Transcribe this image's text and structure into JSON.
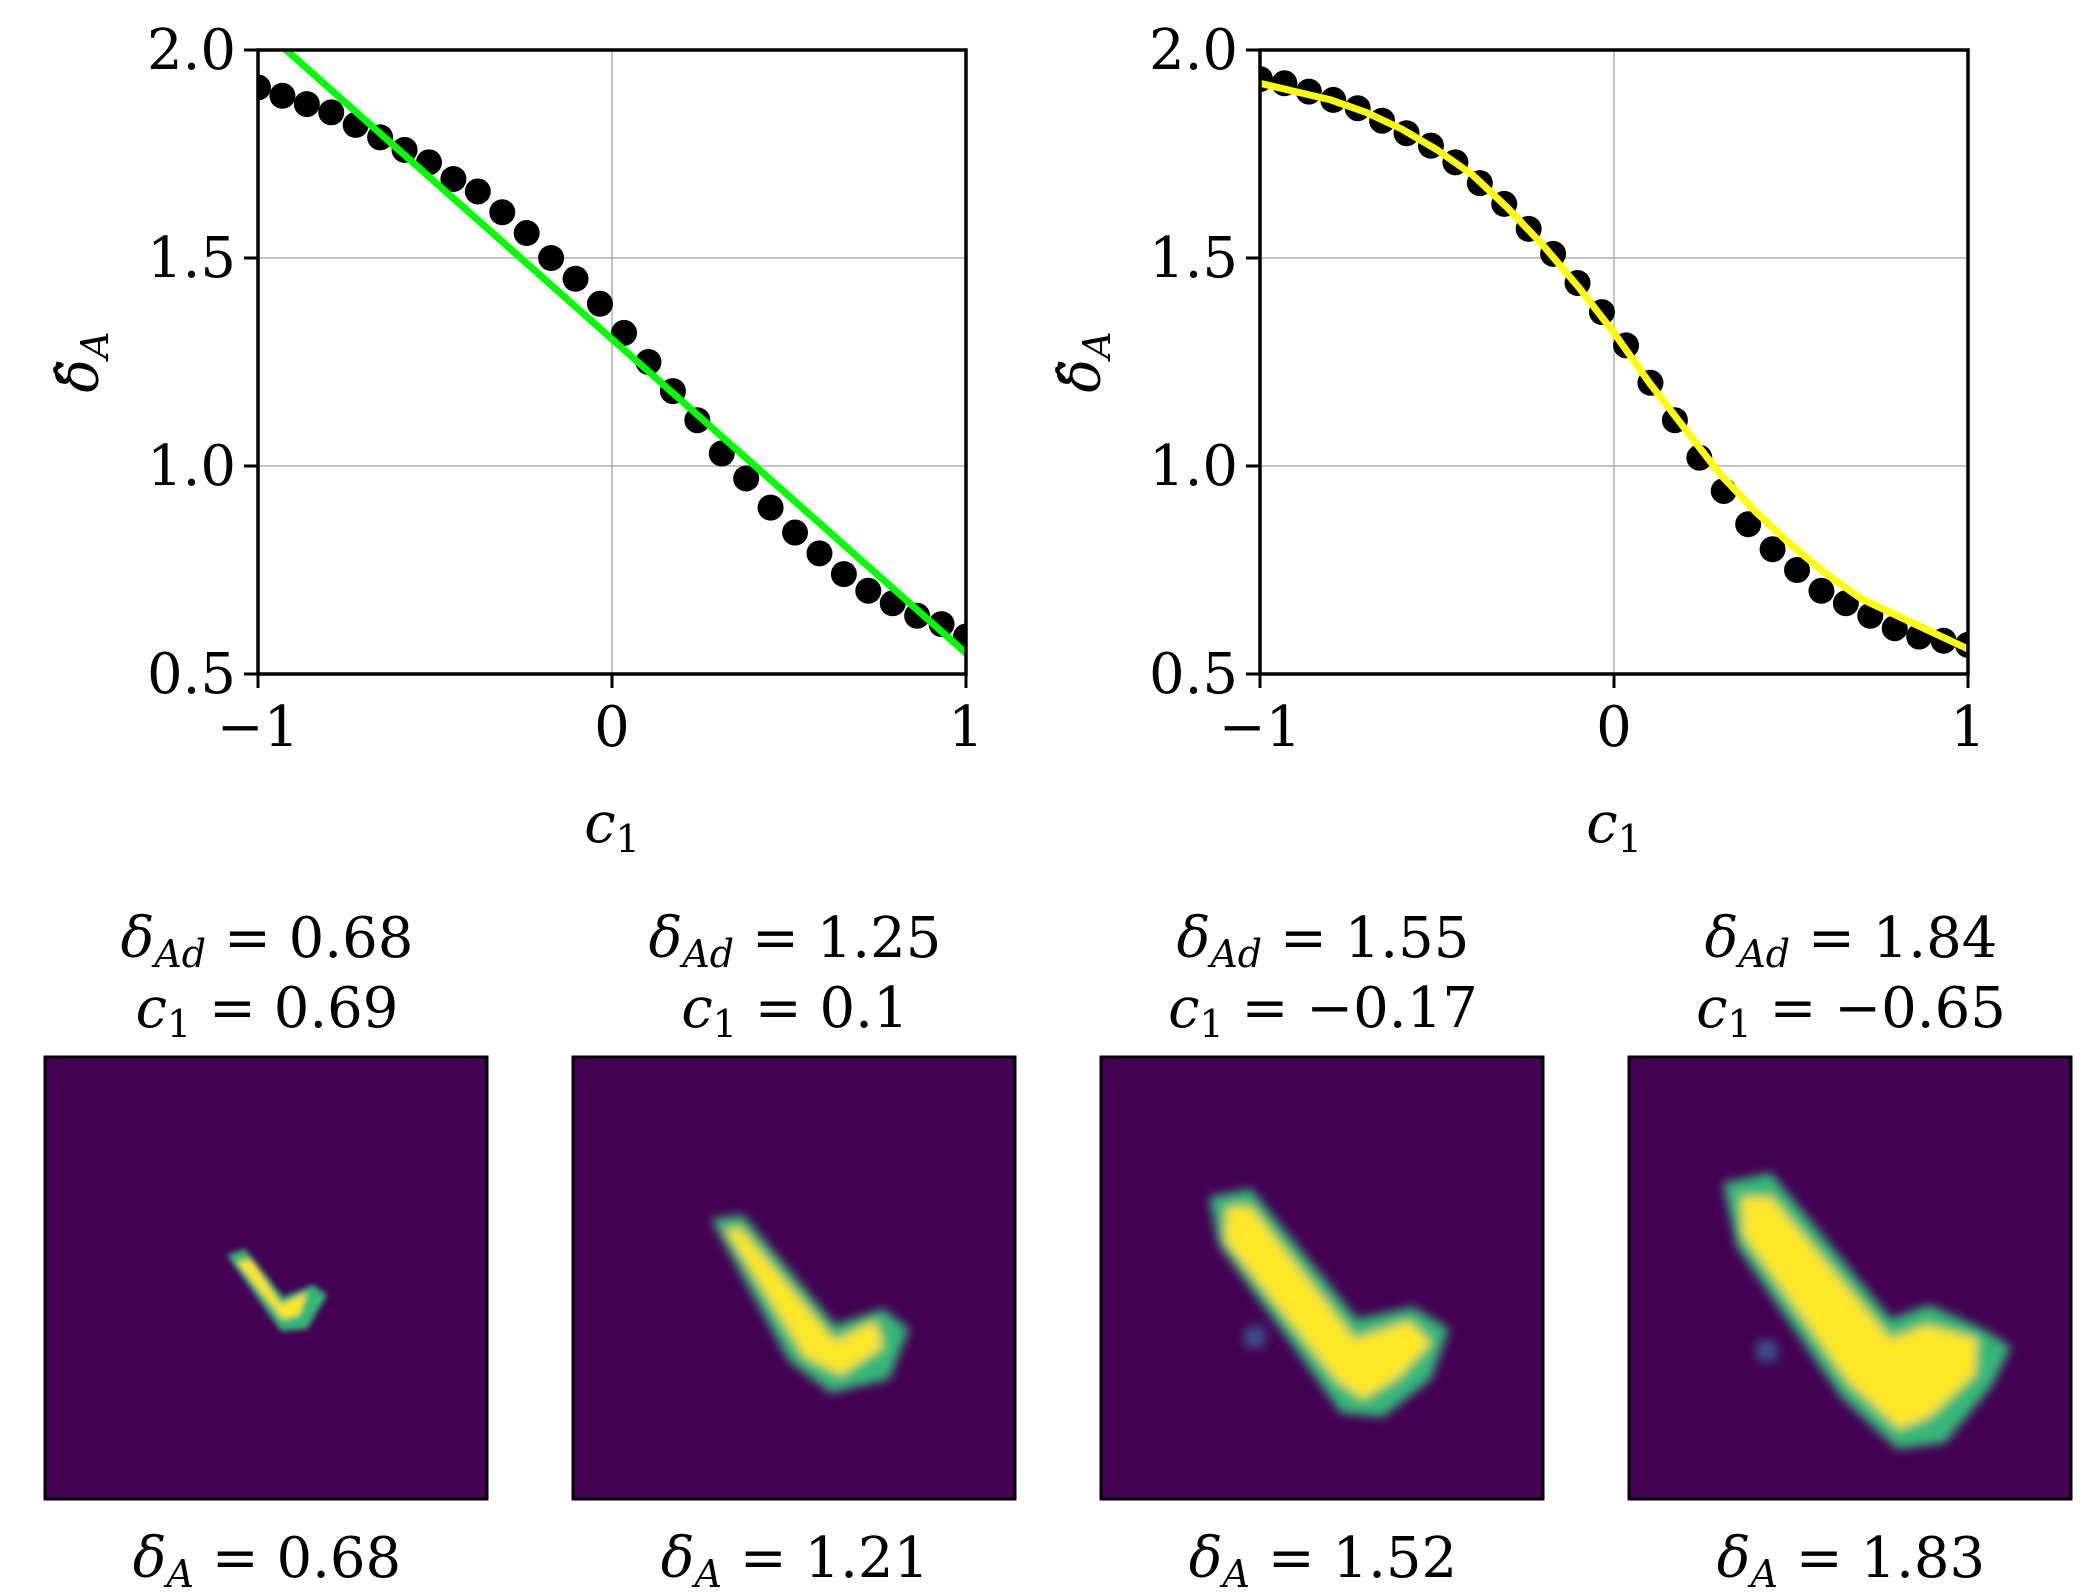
{
  "chart_data": [
    {
      "type": "scatter",
      "title": "",
      "xlabel": "c",
      "xlabel_sub": "1",
      "ylabel": "δ̂",
      "ylabel_sub": "A",
      "xlim": [
        -1,
        1
      ],
      "ylim": [
        0.5,
        2.0
      ],
      "xticks": [
        "−1",
        "0",
        "1"
      ],
      "yticks": [
        "0.5",
        "1.0",
        "1.5",
        "2.0"
      ],
      "xtick_values": [
        -1,
        0,
        1
      ],
      "ytick_values": [
        0.5,
        1.0,
        1.5,
        2.0
      ],
      "grid": true,
      "series": [
        {
          "kind": "scatter",
          "color": "#000000",
          "x": [
            -1.0,
            -0.931,
            -0.862,
            -0.793,
            -0.724,
            -0.655,
            -0.586,
            -0.517,
            -0.448,
            -0.379,
            -0.31,
            -0.241,
            -0.172,
            -0.103,
            -0.034,
            0.034,
            0.103,
            0.172,
            0.241,
            0.31,
            0.379,
            0.448,
            0.517,
            0.586,
            0.655,
            0.724,
            0.793,
            0.862,
            0.931,
            1.0
          ],
          "y": [
            1.91,
            1.89,
            1.87,
            1.85,
            1.82,
            1.79,
            1.76,
            1.73,
            1.69,
            1.66,
            1.61,
            1.56,
            1.5,
            1.45,
            1.39,
            1.32,
            1.25,
            1.18,
            1.11,
            1.03,
            0.97,
            0.9,
            0.84,
            0.79,
            0.74,
            0.7,
            0.67,
            0.64,
            0.62,
            0.59
          ]
        },
        {
          "kind": "line",
          "color": "#00ff00",
          "x": [
            -1,
            1
          ],
          "y": [
            2.06,
            0.55
          ]
        }
      ]
    },
    {
      "type": "scatter",
      "title": "",
      "xlabel": "c",
      "xlabel_sub": "1",
      "ylabel": "δ̂",
      "ylabel_sub": "A",
      "xlim": [
        -1,
        1
      ],
      "ylim": [
        0.5,
        2.0
      ],
      "xticks": [
        "−1",
        "0",
        "1"
      ],
      "yticks": [
        "0.5",
        "1.0",
        "1.5",
        "2.0"
      ],
      "xtick_values": [
        -1,
        0,
        1
      ],
      "ytick_values": [
        0.5,
        1.0,
        1.5,
        2.0
      ],
      "grid": true,
      "series": [
        {
          "kind": "scatter",
          "color": "#000000",
          "x": [
            -1.0,
            -0.931,
            -0.862,
            -0.793,
            -0.724,
            -0.655,
            -0.586,
            -0.517,
            -0.448,
            -0.379,
            -0.31,
            -0.241,
            -0.172,
            -0.103,
            -0.034,
            0.034,
            0.103,
            0.172,
            0.241,
            0.31,
            0.379,
            0.448,
            0.517,
            0.586,
            0.655,
            0.724,
            0.793,
            0.862,
            0.931,
            1.0
          ],
          "y": [
            1.93,
            1.92,
            1.9,
            1.88,
            1.86,
            1.83,
            1.8,
            1.77,
            1.73,
            1.68,
            1.63,
            1.57,
            1.51,
            1.44,
            1.37,
            1.29,
            1.2,
            1.11,
            1.02,
            0.94,
            0.86,
            0.8,
            0.75,
            0.7,
            0.67,
            0.64,
            0.61,
            0.59,
            0.58,
            0.57
          ]
        },
        {
          "kind": "line",
          "color": "#ffff00",
          "x": [
            -1.0,
            -0.9,
            -0.8,
            -0.7,
            -0.6,
            -0.5,
            -0.4,
            -0.3,
            -0.2,
            -0.1,
            0.0,
            0.1,
            0.2,
            0.3,
            0.4,
            0.5,
            0.6,
            0.7,
            0.8,
            0.9,
            1.0
          ],
          "y": [
            1.92,
            1.9,
            1.88,
            1.85,
            1.81,
            1.76,
            1.7,
            1.62,
            1.53,
            1.43,
            1.32,
            1.2,
            1.09,
            0.98,
            0.89,
            0.81,
            0.74,
            0.68,
            0.64,
            0.6,
            0.56
          ]
        }
      ]
    }
  ],
  "panels": [
    {
      "title_line1": "δAd = 0.68",
      "title_line2": "c1 = 0.69",
      "caption": "δA = 0.68",
      "d_ad": "0.68",
      "c1": "0.69",
      "d_a": "0.68"
    },
    {
      "title_line1": "δAd = 1.25",
      "title_line2": "c1 = 0.1",
      "caption": "δA = 1.21",
      "d_ad": "1.25",
      "c1": "0.1",
      "d_a": "1.21"
    },
    {
      "title_line1": "δAd = 1.55",
      "title_line2": "c1 = −0.17",
      "caption": "δA = 1.52",
      "d_ad": "1.55",
      "c1": "−0.17",
      "d_a": "1.52"
    },
    {
      "title_line1": "δAd = 1.84",
      "title_line2": "c1 = −0.65",
      "caption": "δA = 1.83",
      "d_ad": "1.84",
      "c1": "−0.65",
      "d_a": "1.83"
    }
  ],
  "colors": {
    "image_background": "#440154",
    "image_low": "#31688e",
    "image_mid": "#35b779",
    "image_high": "#fde725",
    "grid": "#b0b0b0"
  }
}
